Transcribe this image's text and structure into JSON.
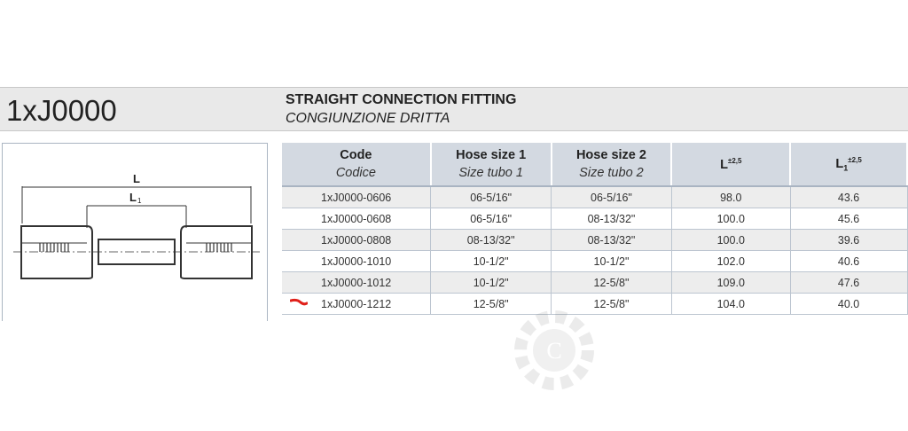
{
  "header": {
    "code": "1xJ0000",
    "title_en": "STRAIGHT CONNECTION FITTING",
    "title_it": "CONGIUNZIONE DRITTA"
  },
  "drawing": {
    "label_L": "L",
    "label_L1": "L",
    "label_L1_sub": "1"
  },
  "table": {
    "columns": [
      {
        "label": "Code",
        "sub": "Codice"
      },
      {
        "label": "Hose size 1",
        "sub": "Size tubo 1"
      },
      {
        "label": "Hose size 2",
        "sub": "Size tubo 2"
      },
      {
        "label": "L",
        "tol": "±2,5"
      },
      {
        "label": "L",
        "label_sub": "1",
        "tol": "±2,5"
      }
    ],
    "rows": [
      [
        "1xJ0000-0606",
        "06-5/16\"",
        "06-5/16\"",
        "98.0",
        "43.6"
      ],
      [
        "1xJ0000-0608",
        "06-5/16\"",
        "08-13/32\"",
        "100.0",
        "45.6"
      ],
      [
        "1xJ0000-0808",
        "08-13/32\"",
        "08-13/32\"",
        "100.0",
        "39.6"
      ],
      [
        "1xJ0000-1010",
        "10-1/2\"",
        "10-1/2\"",
        "102.0",
        "40.6"
      ],
      [
        "1xJ0000-1012",
        "10-1/2\"",
        "12-5/8\"",
        "109.0",
        "47.6"
      ],
      [
        "1xJ0000-1212",
        "12-5/8\"",
        "12-5/8\"",
        "104.0",
        "40.0"
      ]
    ]
  },
  "watermark": {
    "letter": "C"
  },
  "colors": {
    "header_bg": "#e9e9e9",
    "table_header_bg": "#d3d9e1",
    "marker": "#e0201a"
  }
}
